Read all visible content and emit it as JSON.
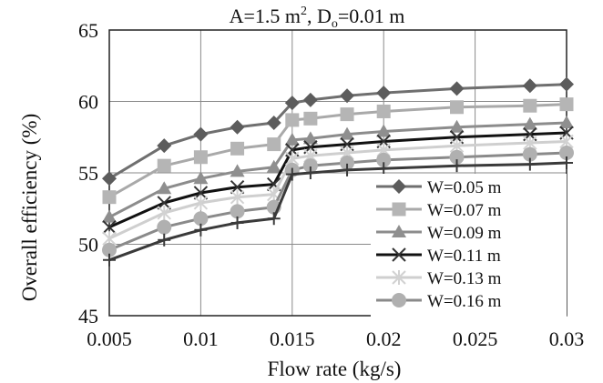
{
  "chart_data": {
    "type": "line",
    "title_parts": {
      "a": "A=1.5 m",
      "a_sup": "2",
      "sep": ", D",
      "d_sub": "o",
      "d_rest": "=0.01 m"
    },
    "xlabel": "Flow rate (kg/s)",
    "ylabel": "Overall efficiency (%)",
    "xlim": [
      0.005,
      0.03
    ],
    "ylim": [
      45,
      65
    ],
    "xticks": [
      "0.005",
      "0.01",
      "0.015",
      "0.02",
      "0.025",
      "0.03"
    ],
    "yticks": [
      "45",
      "50",
      "55",
      "60",
      "65"
    ],
    "grid": true,
    "legend_position": "lower-right",
    "series": [
      {
        "name": "W=0.05 m",
        "marker": "diamond",
        "color": "#6f6f6f",
        "marker_color": "#5c5c5c",
        "points": [
          [
            0.005,
            54.6
          ],
          [
            0.008,
            56.9
          ],
          [
            0.01,
            57.7
          ],
          [
            0.012,
            58.2
          ],
          [
            0.014,
            58.5
          ],
          [
            0.015,
            59.9
          ],
          [
            0.016,
            60.1
          ],
          [
            0.018,
            60.4
          ],
          [
            0.02,
            60.6
          ],
          [
            0.024,
            60.9
          ],
          [
            0.028,
            61.1
          ],
          [
            0.03,
            61.2
          ]
        ]
      },
      {
        "name": "W=0.07 m",
        "marker": "square",
        "color": "#a9a9a9",
        "marker_color": "#b5b5b5",
        "points": [
          [
            0.005,
            53.3
          ],
          [
            0.008,
            55.5
          ],
          [
            0.01,
            56.1
          ],
          [
            0.012,
            56.7
          ],
          [
            0.014,
            57.0
          ],
          [
            0.015,
            58.7
          ],
          [
            0.016,
            58.8
          ],
          [
            0.018,
            59.1
          ],
          [
            0.02,
            59.3
          ],
          [
            0.024,
            59.6
          ],
          [
            0.028,
            59.7
          ],
          [
            0.03,
            59.8
          ]
        ]
      },
      {
        "name": "W=0.09 m",
        "marker": "triangle",
        "color": "#8c8c8c",
        "marker_color": "#8f8f8f",
        "points": [
          [
            0.005,
            51.9
          ],
          [
            0.008,
            53.9
          ],
          [
            0.01,
            54.6
          ],
          [
            0.012,
            55.1
          ],
          [
            0.014,
            55.4
          ],
          [
            0.015,
            57.3
          ],
          [
            0.016,
            57.4
          ],
          [
            0.018,
            57.7
          ],
          [
            0.02,
            57.9
          ],
          [
            0.024,
            58.2
          ],
          [
            0.028,
            58.4
          ],
          [
            0.03,
            58.5
          ]
        ]
      },
      {
        "name": "W=0.11 m",
        "marker": "x",
        "color": "#111111",
        "marker_color": "#333333",
        "points": [
          [
            0.005,
            51.2
          ],
          [
            0.008,
            52.9
          ],
          [
            0.01,
            53.6
          ],
          [
            0.012,
            54.0
          ],
          [
            0.014,
            54.2
          ],
          [
            0.015,
            56.6
          ],
          [
            0.016,
            56.8
          ],
          [
            0.018,
            57.0
          ],
          [
            0.02,
            57.2
          ],
          [
            0.024,
            57.5
          ],
          [
            0.028,
            57.7
          ],
          [
            0.03,
            57.8
          ]
        ]
      },
      {
        "name": "W=0.13 m",
        "marker": "asterisk",
        "color": "#cfcfcf",
        "marker_color": "#d2d2d2",
        "points": [
          [
            0.005,
            50.4
          ],
          [
            0.008,
            52.2
          ],
          [
            0.01,
            52.9
          ],
          [
            0.012,
            53.3
          ],
          [
            0.014,
            53.5
          ],
          [
            0.015,
            56.0
          ],
          [
            0.016,
            56.2
          ],
          [
            0.018,
            56.4
          ],
          [
            0.02,
            56.6
          ],
          [
            0.024,
            56.9
          ],
          [
            0.028,
            57.1
          ],
          [
            0.03,
            57.2
          ]
        ]
      },
      {
        "name": "W=0.16 m",
        "marker": "circle",
        "color": "#8a8a8a",
        "marker_color": "#b0b0b0",
        "points": [
          [
            0.005,
            49.6
          ],
          [
            0.008,
            51.2
          ],
          [
            0.01,
            51.8
          ],
          [
            0.012,
            52.3
          ],
          [
            0.014,
            52.6
          ],
          [
            0.015,
            55.2
          ],
          [
            0.016,
            55.5
          ],
          [
            0.018,
            55.7
          ],
          [
            0.02,
            55.9
          ],
          [
            0.024,
            56.1
          ],
          [
            0.028,
            56.3
          ],
          [
            0.03,
            56.4
          ]
        ]
      },
      {
        "name": "",
        "marker": "plus",
        "color": "#3a3a3a",
        "marker_color": "#3a3a3a",
        "points": [
          [
            0.005,
            48.9
          ],
          [
            0.008,
            50.3
          ],
          [
            0.01,
            51.0
          ],
          [
            0.012,
            51.5
          ],
          [
            0.014,
            51.8
          ],
          [
            0.015,
            54.9
          ],
          [
            0.016,
            55.0
          ],
          [
            0.018,
            55.2
          ],
          [
            0.02,
            55.3
          ],
          [
            0.024,
            55.5
          ],
          [
            0.028,
            55.6
          ],
          [
            0.03,
            55.7
          ]
        ]
      }
    ]
  }
}
